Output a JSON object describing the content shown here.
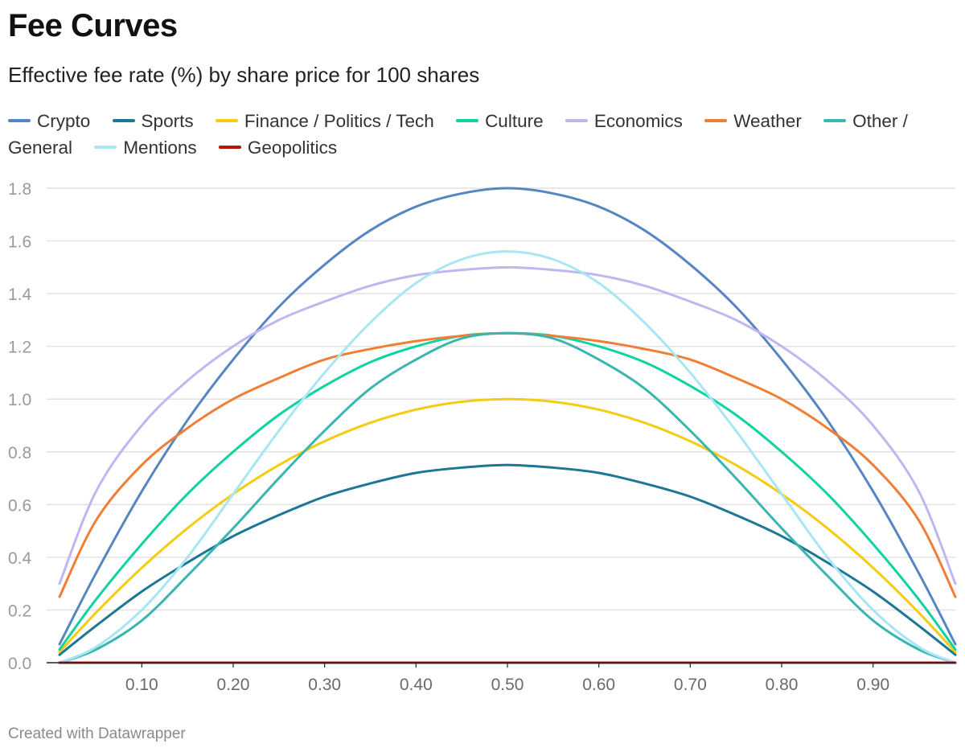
{
  "title": "Fee Curves",
  "subtitle": "Effective fee rate (%) by share price for 100 shares",
  "footer": "Created with Datawrapper",
  "chart_data": {
    "type": "line",
    "title": "Fee Curves",
    "subtitle": "Effective fee rate (%) by share price for 100 shares",
    "xlabel": "",
    "ylabel": "",
    "xlim": [
      0.01,
      0.99
    ],
    "ylim": [
      0,
      1.8
    ],
    "grid": true,
    "legend_position": "top",
    "x_ticks": [
      "0.10",
      "0.20",
      "0.30",
      "0.40",
      "0.50",
      "0.60",
      "0.70",
      "0.80",
      "0.90"
    ],
    "y_ticks": [
      "0.0",
      "0.2",
      "0.4",
      "0.6",
      "0.8",
      "1.0",
      "1.2",
      "1.4",
      "1.6",
      "1.8"
    ],
    "x": [
      0.01,
      0.05,
      0.1,
      0.15,
      0.2,
      0.25,
      0.3,
      0.35,
      0.4,
      0.45,
      0.5,
      0.55,
      0.6,
      0.65,
      0.7,
      0.75,
      0.8,
      0.85,
      0.9,
      0.95,
      0.99
    ],
    "series": [
      {
        "name": "Crypto",
        "color": "#5686c2",
        "values": [
          0.07,
          0.34,
          0.65,
          0.92,
          1.15,
          1.35,
          1.51,
          1.64,
          1.73,
          1.78,
          1.8,
          1.78,
          1.73,
          1.64,
          1.51,
          1.35,
          1.15,
          0.92,
          0.65,
          0.34,
          0.07
        ]
      },
      {
        "name": "Sports",
        "color": "#1d7794",
        "values": [
          0.03,
          0.14,
          0.27,
          0.38,
          0.48,
          0.56,
          0.63,
          0.68,
          0.72,
          0.74,
          0.75,
          0.74,
          0.72,
          0.68,
          0.63,
          0.56,
          0.48,
          0.38,
          0.27,
          0.14,
          0.03
        ]
      },
      {
        "name": "Finance / Politics / Tech",
        "color": "#f4cc12",
        "values": [
          0.04,
          0.19,
          0.36,
          0.51,
          0.64,
          0.75,
          0.84,
          0.91,
          0.96,
          0.99,
          1.0,
          0.99,
          0.96,
          0.91,
          0.84,
          0.75,
          0.64,
          0.51,
          0.36,
          0.19,
          0.04
        ]
      },
      {
        "name": "Culture",
        "color": "#10d2a2",
        "values": [
          0.05,
          0.24,
          0.45,
          0.64,
          0.8,
          0.94,
          1.05,
          1.14,
          1.2,
          1.24,
          1.25,
          1.24,
          1.2,
          1.14,
          1.05,
          0.94,
          0.8,
          0.64,
          0.45,
          0.24,
          0.05
        ]
      },
      {
        "name": "Economics",
        "color": "#bfb7f0",
        "values": [
          0.3,
          0.65,
          0.9,
          1.07,
          1.2,
          1.3,
          1.37,
          1.43,
          1.47,
          1.49,
          1.5,
          1.49,
          1.47,
          1.43,
          1.37,
          1.3,
          1.2,
          1.07,
          0.9,
          0.65,
          0.3
        ]
      },
      {
        "name": "Weather",
        "color": "#f07e34",
        "values": [
          0.25,
          0.54,
          0.75,
          0.89,
          1.0,
          1.08,
          1.15,
          1.19,
          1.22,
          1.24,
          1.25,
          1.24,
          1.22,
          1.19,
          1.15,
          1.08,
          1.0,
          0.89,
          0.75,
          0.54,
          0.25
        ]
      },
      {
        "name": "Other / General",
        "color": "#3bb5b0",
        "values": [
          0.0,
          0.05,
          0.16,
          0.33,
          0.51,
          0.7,
          0.88,
          1.04,
          1.15,
          1.23,
          1.25,
          1.23,
          1.15,
          1.04,
          0.88,
          0.7,
          0.51,
          0.33,
          0.16,
          0.05,
          0.0
        ]
      },
      {
        "name": "Mentions",
        "color": "#a8e6f3",
        "values": [
          0.0,
          0.06,
          0.2,
          0.4,
          0.64,
          0.88,
          1.1,
          1.29,
          1.44,
          1.53,
          1.56,
          1.53,
          1.44,
          1.29,
          1.1,
          0.88,
          0.64,
          0.4,
          0.2,
          0.06,
          0.0
        ]
      },
      {
        "name": "Geopolitics",
        "color": "#b2160e",
        "values": [
          0,
          0,
          0,
          0,
          0,
          0,
          0,
          0,
          0,
          0,
          0,
          0,
          0,
          0,
          0,
          0,
          0,
          0,
          0,
          0,
          0
        ]
      }
    ]
  }
}
